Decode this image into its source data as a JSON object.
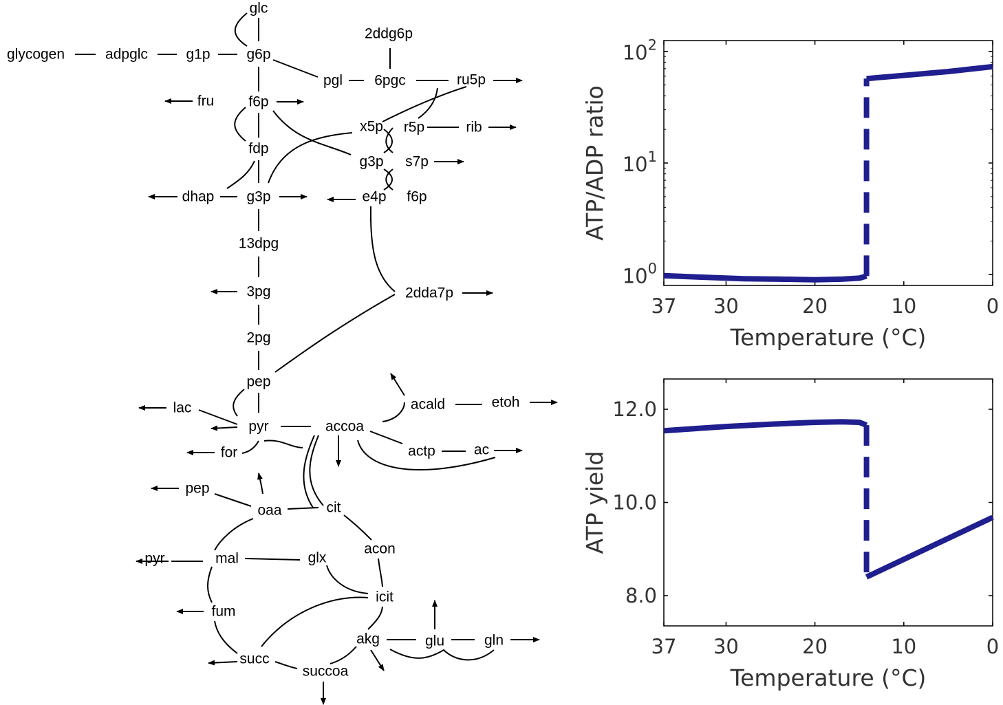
{
  "network": {
    "nodes": [
      {
        "id": "glc",
        "label": "glc"
      },
      {
        "id": "glycogen",
        "label": "glycogen"
      },
      {
        "id": "adpglc",
        "label": "adpglc"
      },
      {
        "id": "g1p",
        "label": "g1p"
      },
      {
        "id": "g6p",
        "label": "g6p"
      },
      {
        "id": "2ddg6p",
        "label": "2ddg6p"
      },
      {
        "id": "pgl",
        "label": "pgl"
      },
      {
        "id": "6pgc",
        "label": "6pgc"
      },
      {
        "id": "ru5p",
        "label": "ru5p"
      },
      {
        "id": "fru",
        "label": "fru"
      },
      {
        "id": "f6p",
        "label": "f6p"
      },
      {
        "id": "x5p",
        "label": "x5p"
      },
      {
        "id": "r5p",
        "label": "r5p"
      },
      {
        "id": "rib",
        "label": "rib"
      },
      {
        "id": "fdp",
        "label": "fdp"
      },
      {
        "id": "g3p_ppp",
        "label": "g3p"
      },
      {
        "id": "s7p",
        "label": "s7p"
      },
      {
        "id": "dhap",
        "label": "dhap"
      },
      {
        "id": "g3p",
        "label": "g3p"
      },
      {
        "id": "e4p",
        "label": "e4p"
      },
      {
        "id": "f6p_ppp",
        "label": "f6p"
      },
      {
        "id": "13dpg",
        "label": "13dpg"
      },
      {
        "id": "3pg",
        "label": "3pg"
      },
      {
        "id": "2dda7p",
        "label": "2dda7p"
      },
      {
        "id": "2pg",
        "label": "2pg"
      },
      {
        "id": "pep",
        "label": "pep"
      },
      {
        "id": "lac",
        "label": "lac"
      },
      {
        "id": "pyr",
        "label": "pyr"
      },
      {
        "id": "accoa",
        "label": "accoa"
      },
      {
        "id": "acald",
        "label": "acald"
      },
      {
        "id": "etoh",
        "label": "etoh"
      },
      {
        "id": "for",
        "label": "for"
      },
      {
        "id": "actp",
        "label": "actp"
      },
      {
        "id": "ac",
        "label": "ac"
      },
      {
        "id": "pep_tca",
        "label": "pep"
      },
      {
        "id": "oaa",
        "label": "oaa"
      },
      {
        "id": "cit",
        "label": "cit"
      },
      {
        "id": "acon",
        "label": "acon"
      },
      {
        "id": "pyr_tca",
        "label": "pyr"
      },
      {
        "id": "mal",
        "label": "mal"
      },
      {
        "id": "glx",
        "label": "glx"
      },
      {
        "id": "icit",
        "label": "icit"
      },
      {
        "id": "fum",
        "label": "fum"
      },
      {
        "id": "akg",
        "label": "akg"
      },
      {
        "id": "glu",
        "label": "glu"
      },
      {
        "id": "gln",
        "label": "gln"
      },
      {
        "id": "succ",
        "label": "succ"
      },
      {
        "id": "succoa",
        "label": "succoa"
      }
    ]
  },
  "chart_data": [
    {
      "type": "line",
      "title": "",
      "xlabel": "Temperature (°C)",
      "ylabel": "ATP/ADP ratio",
      "yscale": "log",
      "xlim": [
        37,
        0
      ],
      "ylim": [
        0.8,
        125
      ],
      "x_ticks": [
        "37",
        "30",
        "20",
        "10",
        "0"
      ],
      "y_ticks": [
        {
          "value": 1,
          "base": "10",
          "exp": "0"
        },
        {
          "value": 10,
          "base": "10",
          "exp": "1"
        },
        {
          "value": 100,
          "base": "10",
          "exp": "2"
        }
      ],
      "color": "#1f1f8f",
      "series": [
        {
          "style": "solid",
          "x": [
            37,
            33,
            28,
            24,
            20,
            17,
            15,
            14.2
          ],
          "y": [
            0.98,
            0.95,
            0.92,
            0.91,
            0.9,
            0.91,
            0.93,
            0.97
          ]
        },
        {
          "style": "dashed",
          "x": [
            14.2,
            14.2
          ],
          "y": [
            0.97,
            57
          ]
        },
        {
          "style": "solid",
          "x": [
            14.2,
            10,
            5,
            0
          ],
          "y": [
            57,
            61,
            66,
            73
          ]
        }
      ]
    },
    {
      "type": "line",
      "title": "",
      "xlabel": "Temperature (°C)",
      "ylabel": "ATP yield",
      "yscale": "linear",
      "xlim": [
        37,
        0
      ],
      "ylim": [
        7.35,
        12.65
      ],
      "x_ticks": [
        "37",
        "30",
        "20",
        "10",
        "0"
      ],
      "y_ticks": [
        {
          "value": 8,
          "label": "8.0"
        },
        {
          "value": 10,
          "label": "10.0"
        },
        {
          "value": 12,
          "label": "12.0"
        }
      ],
      "color": "#1f1f8f",
      "series": [
        {
          "style": "solid",
          "x": [
            37,
            30,
            25,
            20,
            17,
            15,
            14.2
          ],
          "y": [
            11.54,
            11.63,
            11.68,
            11.72,
            11.73,
            11.72,
            11.66
          ]
        },
        {
          "style": "dashed",
          "x": [
            14.2,
            14.2
          ],
          "y": [
            11.66,
            8.4
          ]
        },
        {
          "style": "solid",
          "x": [
            14.2,
            0
          ],
          "y": [
            8.4,
            9.68
          ]
        }
      ]
    }
  ]
}
